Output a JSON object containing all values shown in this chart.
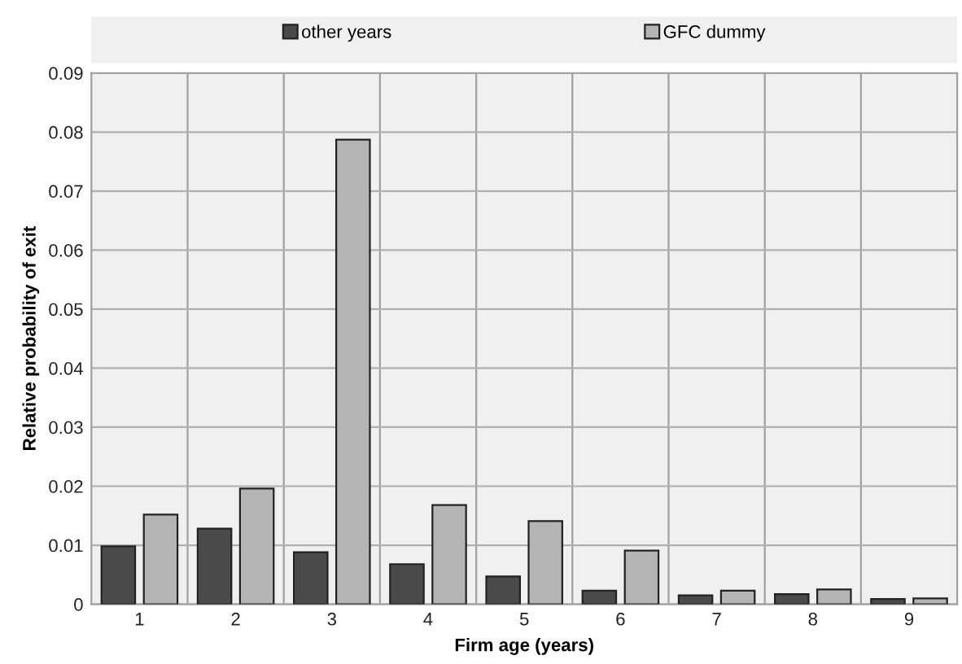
{
  "chart_data": {
    "type": "bar",
    "xlabel": "Firm age (years)",
    "ylabel": "Relative probability of exit",
    "categories": [
      "1",
      "2",
      "3",
      "4",
      "5",
      "6",
      "7",
      "8",
      "9"
    ],
    "series": [
      {
        "name": "other years",
        "color": "#4a4a4a",
        "values": [
          0.0098,
          0.0128,
          0.0088,
          0.0068,
          0.0047,
          0.0023,
          0.0015,
          0.0017,
          0.0009
        ]
      },
      {
        "name": "GFC dummy",
        "color": "#b4b4b4",
        "values": [
          0.0152,
          0.0196,
          0.0787,
          0.0168,
          0.0141,
          0.0091,
          0.0023,
          0.0025,
          0.001
        ]
      }
    ],
    "ylim": [
      0,
      0.09
    ],
    "yticks": [
      0,
      0.01,
      0.02,
      0.03,
      0.04,
      0.05,
      0.06,
      0.07,
      0.08,
      0.09
    ],
    "grid": true,
    "legend": "top"
  }
}
